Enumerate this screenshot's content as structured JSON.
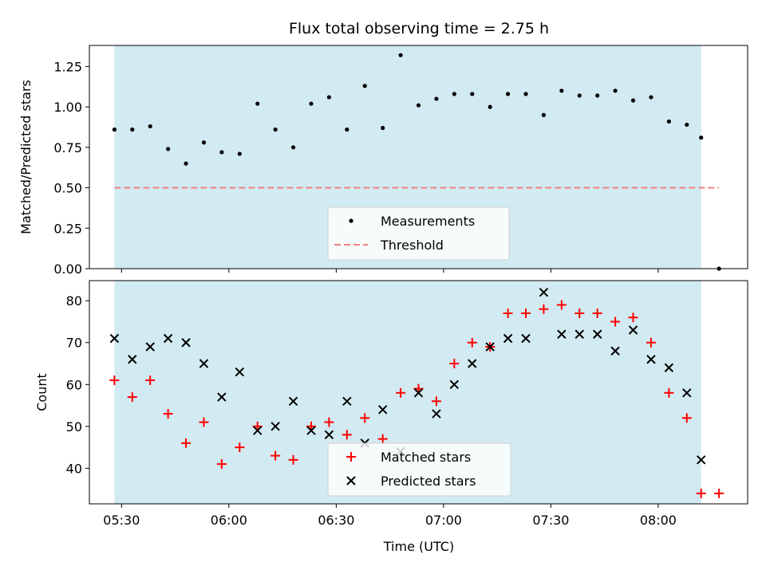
{
  "chart_data": {
    "title": "Flux total observing time = 2.75 h",
    "xlabel": "Time (UTC)",
    "x_ticks": [
      "05:30",
      "06:00",
      "06:30",
      "07:00",
      "07:30",
      "08:00"
    ],
    "x_range": [
      "05:21",
      "08:25"
    ],
    "shaded_range": [
      "05:28",
      "08:12"
    ],
    "colors": {
      "shade": "#add8e6",
      "measurement": "#000000",
      "threshold": "#f08080",
      "matched": "#ff0000",
      "predicted": "#000000"
    },
    "panels": [
      {
        "type": "scatter",
        "ylabel": "Matched/Predicted stars",
        "ylim": [
          0,
          1.38
        ],
        "y_ticks": [
          "0.00",
          "0.25",
          "0.50",
          "0.75",
          "1.00",
          "1.25"
        ],
        "threshold": 0.5,
        "threshold_x_range": [
          "05:28",
          "08:17"
        ],
        "legend": {
          "placement": "lower center",
          "entries": [
            "Measurements",
            "Threshold"
          ]
        },
        "series": [
          {
            "name": "Measurements",
            "x": [
              "05:28",
              "05:33",
              "05:38",
              "05:43",
              "05:48",
              "05:53",
              "05:58",
              "06:03",
              "06:08",
              "06:13",
              "06:18",
              "06:23",
              "06:28",
              "06:33",
              "06:38",
              "06:43",
              "06:48",
              "06:53",
              "06:58",
              "07:03",
              "07:08",
              "07:13",
              "07:18",
              "07:23",
              "07:28",
              "07:33",
              "07:38",
              "07:43",
              "07:48",
              "07:53",
              "07:58",
              "08:03",
              "08:08",
              "08:12",
              "08:17"
            ],
            "y": [
              0.86,
              0.86,
              0.88,
              0.74,
              0.65,
              0.78,
              0.72,
              0.71,
              1.02,
              0.86,
              0.75,
              1.02,
              1.06,
              0.86,
              1.13,
              0.87,
              1.32,
              1.01,
              1.05,
              1.08,
              1.08,
              1.0,
              1.08,
              1.08,
              0.95,
              1.1,
              1.07,
              1.07,
              1.1,
              1.04,
              1.06,
              0.91,
              0.89,
              0.81,
              0.0
            ]
          }
        ]
      },
      {
        "type": "scatter",
        "ylabel": "Count",
        "ylim": [
          31.5,
          84.8
        ],
        "y_ticks": [
          "40",
          "50",
          "60",
          "70",
          "80"
        ],
        "legend": {
          "placement": "lower center",
          "entries": [
            "Matched stars",
            "Predicted stars"
          ]
        },
        "series": [
          {
            "name": "Matched stars",
            "marker": "+",
            "x": [
              "05:28",
              "05:33",
              "05:38",
              "05:43",
              "05:48",
              "05:53",
              "05:58",
              "06:03",
              "06:08",
              "06:13",
              "06:18",
              "06:23",
              "06:28",
              "06:33",
              "06:38",
              "06:43",
              "06:48",
              "06:53",
              "06:58",
              "07:03",
              "07:08",
              "07:13",
              "07:18",
              "07:23",
              "07:28",
              "07:33",
              "07:38",
              "07:43",
              "07:48",
              "07:53",
              "07:58",
              "08:03",
              "08:08",
              "08:12",
              "08:17"
            ],
            "y": [
              61,
              57,
              61,
              53,
              46,
              51,
              41,
              45,
              50,
              43,
              42,
              50,
              51,
              48,
              52,
              47,
              58,
              59,
              56,
              65,
              70,
              69,
              77,
              77,
              78,
              79,
              77,
              77,
              75,
              76,
              70,
              58,
              52,
              34,
              34
            ]
          },
          {
            "name": "Predicted stars",
            "marker": "x",
            "x": [
              "05:28",
              "05:33",
              "05:38",
              "05:43",
              "05:48",
              "05:53",
              "05:58",
              "06:03",
              "06:08",
              "06:13",
              "06:18",
              "06:23",
              "06:28",
              "06:33",
              "06:38",
              "06:43",
              "06:48",
              "06:53",
              "06:58",
              "07:03",
              "07:08",
              "07:13",
              "07:18",
              "07:23",
              "07:28",
              "07:33",
              "07:38",
              "07:43",
              "07:48",
              "07:53",
              "07:58",
              "08:03",
              "08:08",
              "08:12"
            ],
            "y": [
              71,
              66,
              69,
              71,
              70,
              65,
              57,
              63,
              49,
              50,
              56,
              49,
              48,
              56,
              46,
              54,
              44,
              58,
              53,
              60,
              65,
              69,
              71,
              71,
              82,
              72,
              72,
              72,
              68,
              73,
              66,
              64,
              58,
              42
            ]
          }
        ]
      }
    ]
  }
}
